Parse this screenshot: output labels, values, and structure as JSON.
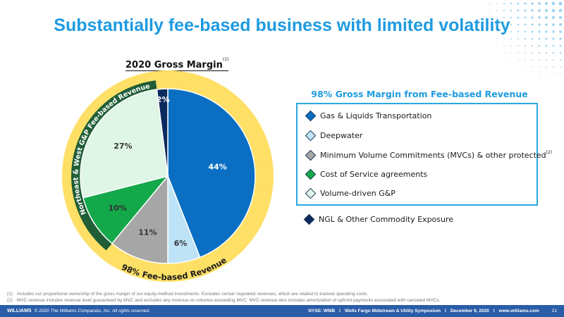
{
  "title": "Substantially fee-based business with limited volatility",
  "chart_data": {
    "type": "pie",
    "title": "2020 Gross Margin",
    "title_note": "(1)",
    "slices": [
      {
        "label": "Gas & Liquids Transportation",
        "value": 44,
        "text": "44%",
        "color": "#0a6fc2",
        "label_color": "#ffffff"
      },
      {
        "label": "Deepwater",
        "value": 6,
        "text": "6%",
        "color": "#bfe3f6",
        "label_color": "#333333"
      },
      {
        "label": "Minimum Volume Commitments (MVCs) & other protected",
        "value": 11,
        "text": "11%",
        "color": "#a6a6a6",
        "label_color": "#333333"
      },
      {
        "label": "Cost of Service agreements",
        "value": 10,
        "text": "10%",
        "color": "#13a84a",
        "label_color": "#333333"
      },
      {
        "label": "Volume-driven G&P",
        "value": 27,
        "text": "27%",
        "color": "#dff5e6",
        "label_color": "#333333"
      },
      {
        "label": "NGL & Other Commodity Exposure",
        "value": 2,
        "text": "2%",
        "color": "#0b2a5e",
        "label_color": "#ffffff"
      }
    ],
    "outer_ring_label": "98% Fee-based Revenue",
    "inner_arc_label": "Northeast & West G&P Fee-based Revenue",
    "colors": {
      "outer_ring": "#ffe066",
      "inner_arc": "#1f5e36",
      "ring_text": "#1a1a1a",
      "arc_text": "#ffffff"
    }
  },
  "legend": {
    "title": "98% Gross Margin from Fee-based Revenue",
    "items": [
      {
        "label": "Gas & Liquids Transportation",
        "note": "",
        "color": "#0a6fc2"
      },
      {
        "label": "Deepwater",
        "note": "",
        "color": "#bfe3f6"
      },
      {
        "label": "Minimum Volume Commitments (MVCs) & other protected",
        "note": "(2)",
        "color": "#a6a6a6"
      },
      {
        "label": "Cost of Service agreements",
        "note": "",
        "color": "#13a84a"
      },
      {
        "label": "Volume-driven G&P",
        "note": "",
        "color": "#dff5e6"
      }
    ],
    "extra": {
      "label": "NGL & Other Commodity Exposure",
      "color": "#0b2a5e"
    }
  },
  "footnotes": [
    {
      "num": "(1)",
      "text": "Includes our proportional ownership of the gross margin of our equity-method investments. Excludes certain regulated revenues, which are related to tracked operating costs."
    },
    {
      "num": "(2)",
      "text": "MVC revenue includes revenue level guaranteed by MVC and excludes any revenue on volumes exceeding MVC.  MVC revenue also includes amortization of upfront payments associated with canceled MVCs."
    }
  ],
  "footer": {
    "brand": "WILLIAMS",
    "copyright": "© 2020 The Williams Companies, Inc. All rights reserved.",
    "ticker": "NYSE: WMB",
    "event": "Wells Fargo Midstream & Utility Symposium",
    "date": "December 9, 2020",
    "website": "www.williams.com",
    "page": "21",
    "separator": "I"
  }
}
